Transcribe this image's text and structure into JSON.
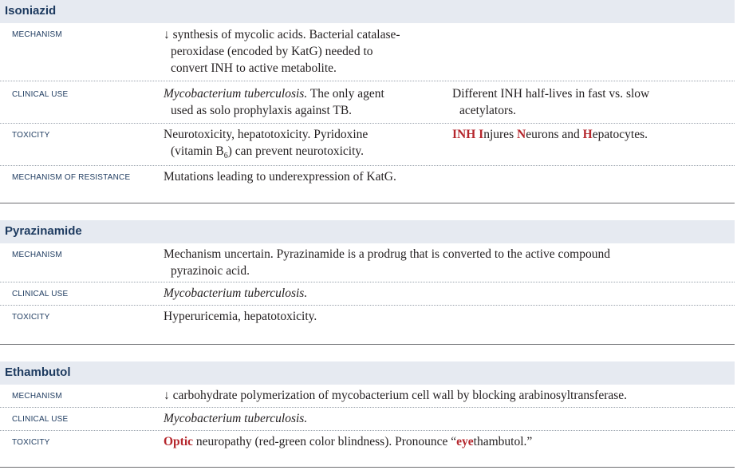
{
  "isoniazid": {
    "title": "Isoniazid",
    "mechanism_label": "MECHANISM",
    "mechanism_l1": "↓ synthesis of mycolic acids. Bacterial catalase-",
    "mechanism_l2": "peroxidase (encoded by KatG) needed to",
    "mechanism_l3": "convert INH to active metabolite.",
    "clinical_label": "CLINICAL USE",
    "clinical_italic": "Mycobacterium tuberculosis.",
    "clinical_rest": " The only agent",
    "clinical_l2": "used as solo prophylaxis against TB.",
    "clinical_note_l1": "Different INH half-lives in fast vs. slow",
    "clinical_note_l2": "acetylators.",
    "toxicity_label": "TOXICITY",
    "toxicity_l1": "Neurotoxicity, hepatotoxicity. Pyridoxine",
    "toxicity_l2a": "(vitamin B",
    "toxicity_sub": "6",
    "toxicity_l2b": ") can prevent neurotoxicity.",
    "mnemonic_inh": "INH",
    "mnemonic_i": "I",
    "mnemonic_njures": "njures ",
    "mnemonic_n": "N",
    "mnemonic_eurons": "eurons and ",
    "mnemonic_h": "H",
    "mnemonic_epatocytes": "epatocytes.",
    "resistance_label": "MECHANISM OF RESISTANCE",
    "resistance_text": "Mutations leading to underexpression of KatG."
  },
  "pyrazinamide": {
    "title": "Pyrazinamide",
    "mechanism_label": "MECHANISM",
    "mechanism_l1": "Mechanism uncertain. Pyrazinamide is a prodrug that is converted to the active compound",
    "mechanism_l2": "pyrazinoic acid.",
    "clinical_label": "CLINICAL USE",
    "clinical_text": "Mycobacterium tuberculosis.",
    "toxicity_label": "TOXICITY",
    "toxicity_text": "Hyperuricemia, hepatotoxicity."
  },
  "ethambutol": {
    "title": "Ethambutol",
    "mechanism_label": "MECHANISM",
    "mechanism_text": "↓ carbohydrate polymerization of mycobacterium cell wall by blocking arabinosyltransferase.",
    "clinical_label": "CLINICAL USE",
    "clinical_text": "Mycobacterium tuberculosis.",
    "toxicity_label": "TOXICITY",
    "toxicity_optic": "Optic",
    "toxicity_mid": " neuropathy (red-green color blindness). Pronounce “",
    "toxicity_eye": "eye",
    "toxicity_end": "thambutol.”"
  },
  "colors": {
    "heading": "#1d3a5f",
    "header_bg": "#e6eaf1",
    "accent_red": "#b5272d",
    "text": "#231f20"
  }
}
